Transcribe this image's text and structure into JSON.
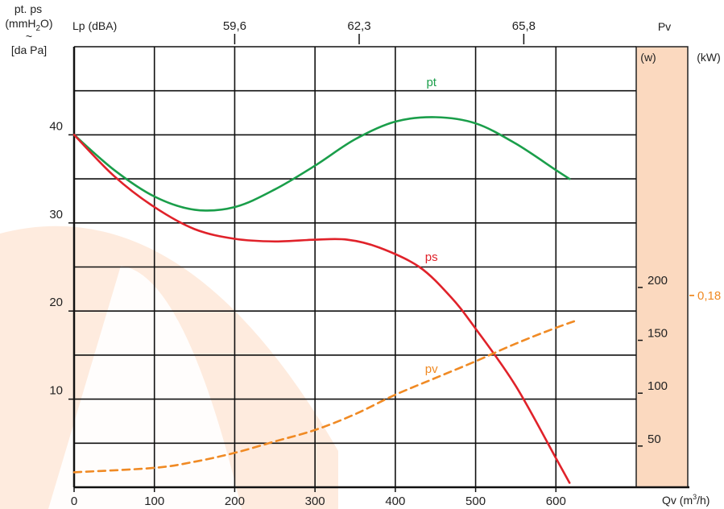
{
  "colors": {
    "pt": "#1a9e4a",
    "ps": "#e0222a",
    "pv": "#f08a24",
    "power_band": "#fbd9bf",
    "watermark": "#fde3d0"
  },
  "labels": {
    "y_left_line1": "pt. ps",
    "y_left_line2_pre": "(mmH",
    "y_left_line2_sub": "2",
    "y_left_line2_post": "O)",
    "y_left_tilde": "~",
    "y_left_line3": "[da Pa]",
    "lp": "Lp (dBA)",
    "pv_title": "Pv",
    "w_unit": "(w)",
    "kw_unit": "(kW)",
    "x_unit_pre": "Qv (m",
    "x_unit_sup": "3",
    "x_unit_post": "/h)"
  },
  "chart_data": {
    "type": "line",
    "x_ticks": [
      "0",
      "100",
      "200",
      "300",
      "400",
      "500",
      "600"
    ],
    "y_ticks": [
      "10",
      "20",
      "30",
      "40"
    ],
    "lp_ticks": [
      {
        "label": "59,6",
        "x": 200
      },
      {
        "label": "62,3",
        "x": 355
      },
      {
        "label": "65,8",
        "x": 560
      }
    ],
    "w_ticks": [
      {
        "label": "50",
        "y": 5.5
      },
      {
        "label": "100",
        "y": 11.5
      },
      {
        "label": "150",
        "y": 17.5
      },
      {
        "label": "200",
        "y": 23.5
      }
    ],
    "kw_ticks": [
      {
        "label": "0,18",
        "y": 22.5
      }
    ],
    "xlim": [
      0,
      700
    ],
    "ylim": [
      0,
      50
    ],
    "grid": true,
    "series": [
      {
        "name": "pt",
        "key": "pt",
        "label_at": [
          445,
          45.5
        ],
        "points": [
          [
            0,
            40
          ],
          [
            50,
            36
          ],
          [
            100,
            33
          ],
          [
            150,
            31.5
          ],
          [
            200,
            31.8
          ],
          [
            250,
            33.8
          ],
          [
            300,
            36.5
          ],
          [
            350,
            39.5
          ],
          [
            400,
            41.5
          ],
          [
            450,
            42
          ],
          [
            500,
            41.3
          ],
          [
            550,
            39
          ],
          [
            600,
            36
          ],
          [
            617,
            35
          ]
        ]
      },
      {
        "name": "ps",
        "key": "ps",
        "label_at": [
          445,
          25.7
        ],
        "points": [
          [
            0,
            40
          ],
          [
            50,
            35.3
          ],
          [
            100,
            31.8
          ],
          [
            150,
            29.3
          ],
          [
            200,
            28.2
          ],
          [
            250,
            27.9
          ],
          [
            300,
            28.1
          ],
          [
            340,
            28.1
          ],
          [
            380,
            27.2
          ],
          [
            430,
            25
          ],
          [
            470,
            21.5
          ],
          [
            500,
            18
          ],
          [
            550,
            11.5
          ],
          [
            600,
            3.3
          ],
          [
            617,
            0.5
          ]
        ]
      },
      {
        "name": "pv",
        "key": "pv",
        "dashed": true,
        "label_at": [
          445,
          13
        ],
        "points": [
          [
            0,
            1.7
          ],
          [
            100,
            2.2
          ],
          [
            150,
            2.9
          ],
          [
            200,
            3.9
          ],
          [
            250,
            5.2
          ],
          [
            300,
            6.5
          ],
          [
            350,
            8.3
          ],
          [
            400,
            10.5
          ],
          [
            450,
            12.4
          ],
          [
            500,
            14.3
          ],
          [
            550,
            16.3
          ],
          [
            600,
            18.1
          ],
          [
            628,
            19
          ]
        ]
      }
    ]
  }
}
